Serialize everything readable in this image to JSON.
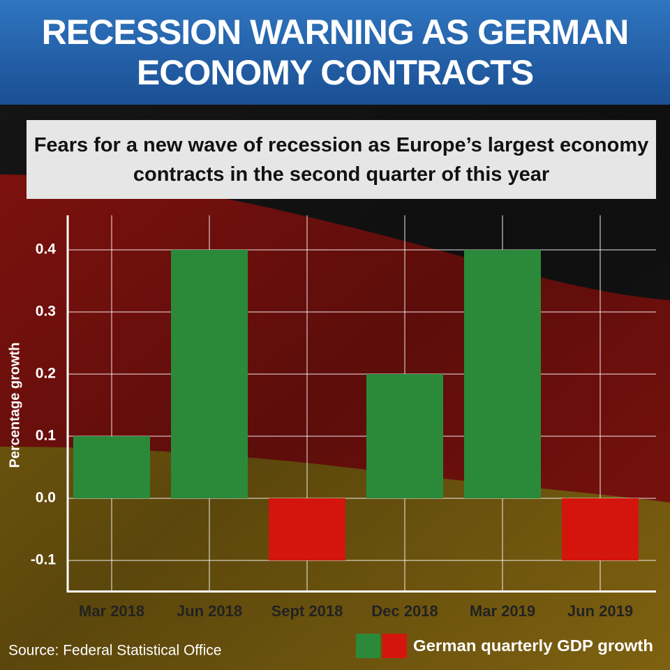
{
  "chart_data": {
    "type": "bar",
    "title": "RECESSION WARNING AS GERMAN ECONOMY CONTRACTS",
    "subtitle": "Fears for a new wave of recession as Europe’s largest economy contracts in the second quarter of this year",
    "y_label": "Percentage growth",
    "source": "Source: Federal Statistical Office",
    "categories": [
      "Mar 2018",
      "Jun 2018",
      "Sept 2018",
      "Dec 2018",
      "Mar 2019",
      "Jun 2019"
    ],
    "series": [
      {
        "name": "German quarterly GDP growth",
        "color": "#2b8a3a",
        "negative_color": "#d4150d",
        "values": [
          0.1,
          0.4,
          -0.1,
          0.2,
          0.4,
          -0.1
        ]
      }
    ],
    "ylim": [
      -0.15,
      0.45
    ],
    "yticks": [
      -0.1,
      {
        "value": 0,
        "label": "0.0"
      },
      0.1,
      0.2,
      0.3,
      0.4
    ],
    "grid": true
  }
}
